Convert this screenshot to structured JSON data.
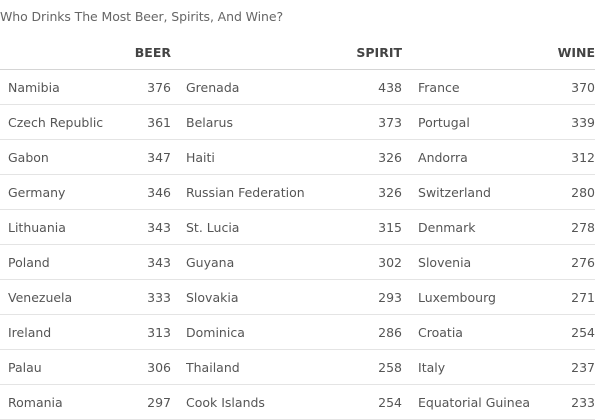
{
  "chart_data": {
    "type": "table",
    "title": "Who Drinks The Most Beer, Spirits, And Wine?",
    "columns": [
      "BEER",
      "SPIRIT",
      "WINE"
    ],
    "beer": [
      {
        "country": "Namibia",
        "value": 376
      },
      {
        "country": "Czech Republic",
        "value": 361
      },
      {
        "country": "Gabon",
        "value": 347
      },
      {
        "country": "Germany",
        "value": 346
      },
      {
        "country": "Lithuania",
        "value": 343
      },
      {
        "country": "Poland",
        "value": 343
      },
      {
        "country": "Venezuela",
        "value": 333
      },
      {
        "country": "Ireland",
        "value": 313
      },
      {
        "country": "Palau",
        "value": 306
      },
      {
        "country": "Romania",
        "value": 297
      }
    ],
    "spirit": [
      {
        "country": "Grenada",
        "value": 438
      },
      {
        "country": "Belarus",
        "value": 373
      },
      {
        "country": "Haiti",
        "value": 326
      },
      {
        "country": "Russian Federation",
        "value": 326
      },
      {
        "country": "St. Lucia",
        "value": 315
      },
      {
        "country": "Guyana",
        "value": 302
      },
      {
        "country": "Slovakia",
        "value": 293
      },
      {
        "country": "Dominica",
        "value": 286
      },
      {
        "country": "Thailand",
        "value": 258
      },
      {
        "country": "Cook Islands",
        "value": 254
      }
    ],
    "wine": [
      {
        "country": "France",
        "value": 370
      },
      {
        "country": "Portugal",
        "value": 339
      },
      {
        "country": "Andorra",
        "value": 312
      },
      {
        "country": "Switzerland",
        "value": 280
      },
      {
        "country": "Denmark",
        "value": 278
      },
      {
        "country": "Slovenia",
        "value": 276
      },
      {
        "country": "Luxembourg",
        "value": 271
      },
      {
        "country": "Croatia",
        "value": 254
      },
      {
        "country": "Italy",
        "value": 237
      },
      {
        "country": "Equatorial Guinea",
        "value": 233
      }
    ]
  }
}
